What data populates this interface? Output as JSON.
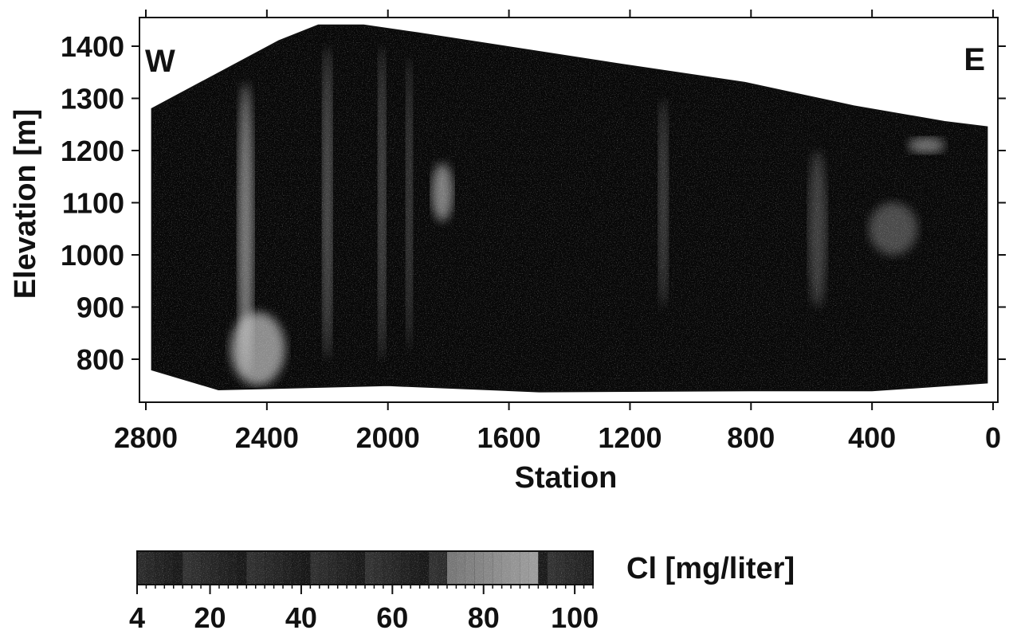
{
  "chart_data": {
    "type": "heatmap",
    "xlabel": "Station",
    "ylabel": "Elevation [m]",
    "xlim": [
      2800,
      0
    ],
    "ylim": [
      720,
      1440
    ],
    "x_reversed": true,
    "x_ticks": [
      2800,
      2400,
      2000,
      1600,
      1200,
      800,
      400,
      0
    ],
    "y_ticks": [
      800,
      900,
      1000,
      1100,
      1200,
      1300,
      1400
    ],
    "side_labels": {
      "west": "W",
      "east": "E"
    },
    "grid": false,
    "top_boundary": [
      {
        "x": 2780,
        "y": 1280
      },
      {
        "x": 2360,
        "y": 1410
      },
      {
        "x": 2230,
        "y": 1440
      },
      {
        "x": 2080,
        "y": 1440
      },
      {
        "x": 1900,
        "y": 1425
      },
      {
        "x": 1230,
        "y": 1365
      },
      {
        "x": 820,
        "y": 1330
      },
      {
        "x": 460,
        "y": 1285
      },
      {
        "x": 160,
        "y": 1255
      },
      {
        "x": 20,
        "y": 1245
      }
    ],
    "bottom_boundary": [
      {
        "x": 2780,
        "y": 780
      },
      {
        "x": 2560,
        "y": 742
      },
      {
        "x": 2000,
        "y": 750
      },
      {
        "x": 1500,
        "y": 738
      },
      {
        "x": 800,
        "y": 740
      },
      {
        "x": 400,
        "y": 740
      },
      {
        "x": 20,
        "y": 755
      }
    ],
    "high_zones": [
      {
        "x": 2470,
        "y": 1050,
        "rx": 25,
        "ry": 280,
        "value": 80
      },
      {
        "x": 2430,
        "y": 820,
        "rx": 90,
        "ry": 70,
        "value": 85
      },
      {
        "x": 1820,
        "y": 1120,
        "rx": 35,
        "ry": 55,
        "value": 80
      },
      {
        "x": 2200,
        "y": 1100,
        "rx": 15,
        "ry": 300,
        "value": 70
      },
      {
        "x": 2020,
        "y": 1100,
        "rx": 12,
        "ry": 300,
        "value": 70
      },
      {
        "x": 1930,
        "y": 1100,
        "rx": 10,
        "ry": 280,
        "value": 65
      },
      {
        "x": 1090,
        "y": 1100,
        "rx": 15,
        "ry": 200,
        "value": 60
      },
      {
        "x": 580,
        "y": 1050,
        "rx": 30,
        "ry": 150,
        "value": 55
      },
      {
        "x": 330,
        "y": 1050,
        "rx": 80,
        "ry": 50,
        "value": 60
      },
      {
        "x": 220,
        "y": 1210,
        "rx": 60,
        "ry": 15,
        "value": 75
      }
    ],
    "colorbar": {
      "label": "Cl [mg/liter]",
      "min": 4,
      "max": 104,
      "ticks": [
        4,
        20,
        40,
        60,
        80,
        100
      ],
      "highlight_band": [
        72,
        92
      ]
    }
  }
}
